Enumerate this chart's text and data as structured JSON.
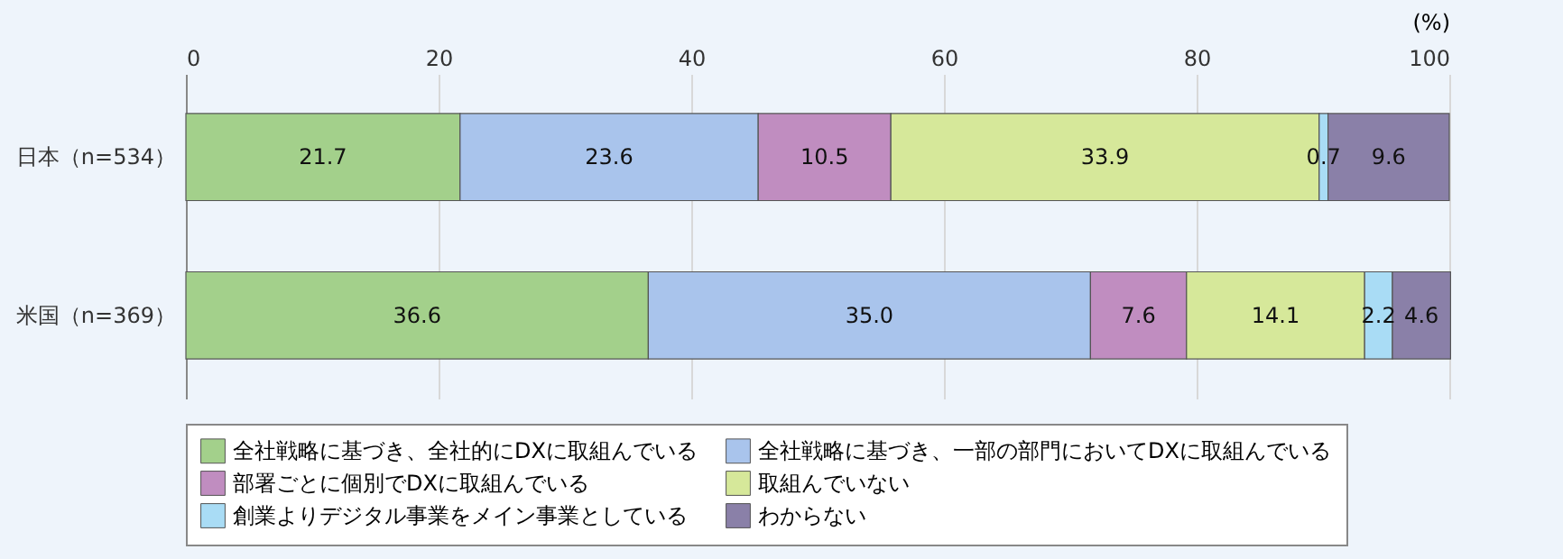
{
  "chart_data": {
    "type": "bar",
    "orientation": "horizontal",
    "stacked": true,
    "xlabel": "(%)",
    "categories": [
      "日本（n=534）",
      "米国（n=369）"
    ],
    "xlim": [
      0,
      100
    ],
    "xticks": [
      0,
      20,
      40,
      60,
      80,
      100
    ],
    "grid": "x",
    "legend": "bottom",
    "series": [
      {
        "name": "全社戦略に基づき、全社的にDXに取組んでいる",
        "color": "#a3d08b",
        "values": [
          21.7,
          36.6
        ],
        "value_labels": [
          "21.7",
          "36.6"
        ]
      },
      {
        "name": "全社戦略に基づき、一部の部門においてDXに取組んでいる",
        "color": "#a9c4ec",
        "values": [
          23.6,
          35.0
        ],
        "value_labels": [
          "23.6",
          "35.0"
        ]
      },
      {
        "name": "部署ごとに個別でDXに取組んでいる",
        "color": "#c08dc0",
        "values": [
          10.5,
          7.6
        ],
        "value_labels": [
          "10.5",
          "7.6"
        ]
      },
      {
        "name": "取組んでいない",
        "color": "#d6e89a",
        "values": [
          33.9,
          14.1
        ],
        "value_labels": [
          "33.9",
          "14.1"
        ]
      },
      {
        "name": "創業よりデジタル事業をメイン事業としている",
        "color": "#a9dcf5",
        "values": [
          0.7,
          2.2
        ],
        "value_labels": [
          "0.7",
          "2.2"
        ]
      },
      {
        "name": "わからない",
        "color": "#8a80a8",
        "values": [
          9.6,
          4.6
        ],
        "value_labels": [
          "9.6",
          "4.6"
        ]
      }
    ]
  }
}
